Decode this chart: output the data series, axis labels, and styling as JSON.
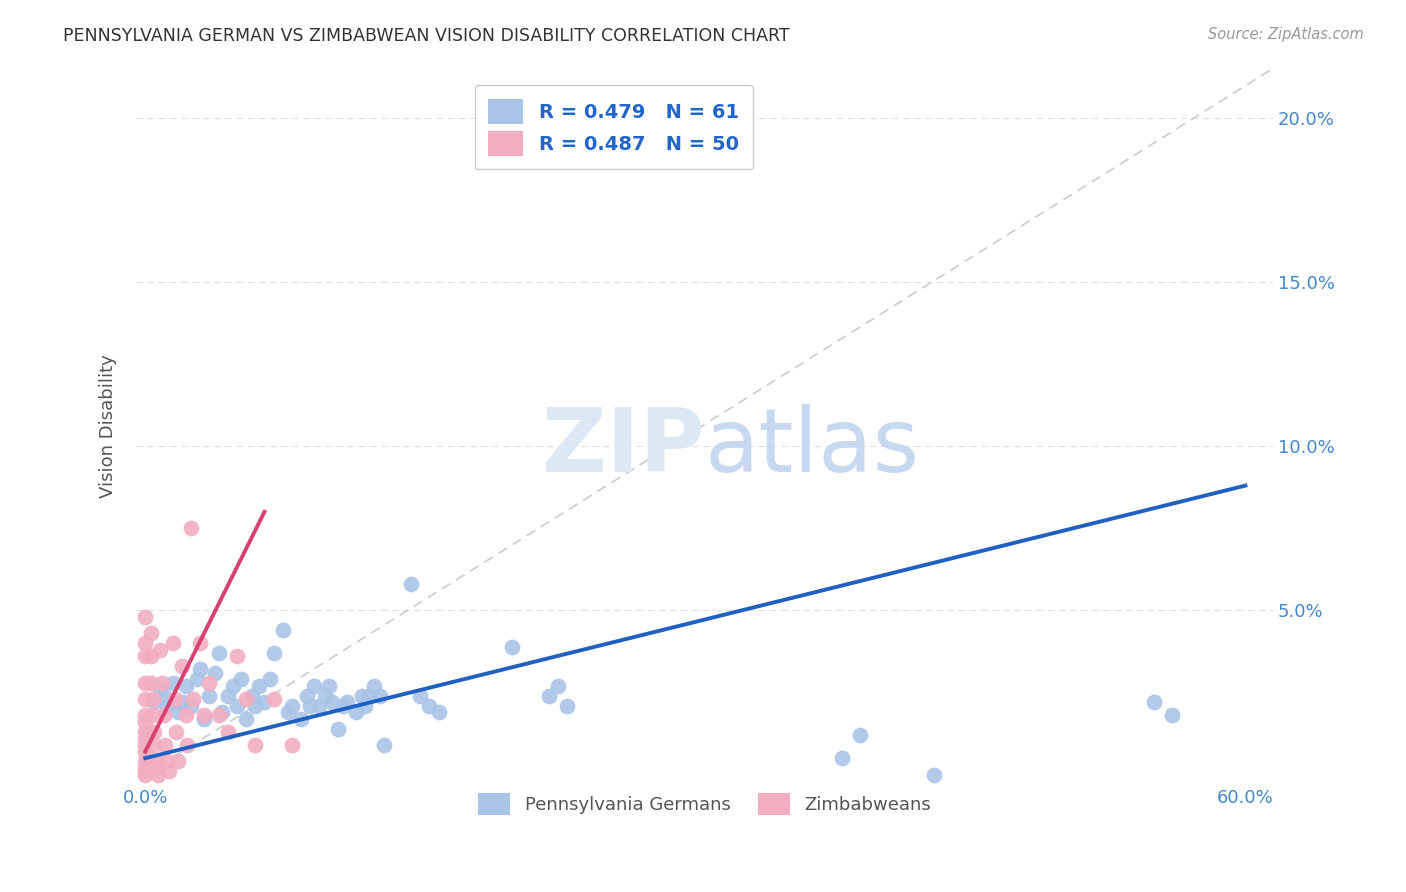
{
  "title": "PENNSYLVANIA GERMAN VS ZIMBABWEAN VISION DISABILITY CORRELATION CHART",
  "source": "Source: ZipAtlas.com",
  "ylabel": "Vision Disability",
  "xlim": [
    -0.005,
    0.615
  ],
  "ylim": [
    -0.003,
    0.215
  ],
  "xtick_vals": [
    0.0,
    0.6
  ],
  "xtick_labels": [
    "0.0%",
    "60.0%"
  ],
  "ytick_vals": [
    0.05,
    0.1,
    0.15,
    0.2
  ],
  "ytick_labels": [
    "5.0%",
    "10.0%",
    "15.0%",
    "20.0%"
  ],
  "blue_R": 0.479,
  "blue_N": 61,
  "pink_R": 0.487,
  "pink_N": 50,
  "blue_color": "#aac4e8",
  "pink_color": "#f2aec0",
  "blue_line_color": "#2060c0",
  "pink_line_color": "#d84070",
  "diag_line_color": "#cccccc",
  "background_color": "#ffffff",
  "legend_text_color": "#2266cc",
  "title_color": "#333333",
  "axis_tick_color": "#4488cc",
  "grid_color": "#e0e0e0",
  "watermark_color": "#dde8f5",
  "blue_line_x": [
    0.0,
    0.6
  ],
  "blue_line_y": [
    0.005,
    0.088
  ],
  "pink_line_x": [
    0.0,
    0.065
  ],
  "pink_line_y": [
    0.007,
    0.08
  ],
  "blue_points": [
    [
      0.005,
      0.022
    ],
    [
      0.008,
      0.026
    ],
    [
      0.01,
      0.024
    ],
    [
      0.012,
      0.021
    ],
    [
      0.015,
      0.028
    ],
    [
      0.018,
      0.019
    ],
    [
      0.02,
      0.022
    ],
    [
      0.022,
      0.027
    ],
    [
      0.025,
      0.021
    ],
    [
      0.028,
      0.029
    ],
    [
      0.03,
      0.032
    ],
    [
      0.032,
      0.017
    ],
    [
      0.035,
      0.024
    ],
    [
      0.038,
      0.031
    ],
    [
      0.04,
      0.037
    ],
    [
      0.042,
      0.019
    ],
    [
      0.045,
      0.024
    ],
    [
      0.048,
      0.027
    ],
    [
      0.05,
      0.021
    ],
    [
      0.052,
      0.029
    ],
    [
      0.055,
      0.017
    ],
    [
      0.058,
      0.024
    ],
    [
      0.06,
      0.021
    ],
    [
      0.062,
      0.027
    ],
    [
      0.065,
      0.022
    ],
    [
      0.068,
      0.029
    ],
    [
      0.07,
      0.037
    ],
    [
      0.075,
      0.044
    ],
    [
      0.078,
      0.019
    ],
    [
      0.08,
      0.021
    ],
    [
      0.085,
      0.017
    ],
    [
      0.088,
      0.024
    ],
    [
      0.09,
      0.021
    ],
    [
      0.092,
      0.027
    ],
    [
      0.095,
      0.021
    ],
    [
      0.098,
      0.024
    ],
    [
      0.1,
      0.027
    ],
    [
      0.102,
      0.022
    ],
    [
      0.105,
      0.014
    ],
    [
      0.108,
      0.021
    ],
    [
      0.11,
      0.022
    ],
    [
      0.115,
      0.019
    ],
    [
      0.118,
      0.024
    ],
    [
      0.12,
      0.021
    ],
    [
      0.122,
      0.024
    ],
    [
      0.125,
      0.027
    ],
    [
      0.128,
      0.024
    ],
    [
      0.13,
      0.009
    ],
    [
      0.145,
      0.058
    ],
    [
      0.15,
      0.024
    ],
    [
      0.155,
      0.021
    ],
    [
      0.16,
      0.019
    ],
    [
      0.2,
      0.039
    ],
    [
      0.22,
      0.024
    ],
    [
      0.225,
      0.027
    ],
    [
      0.23,
      0.021
    ],
    [
      0.38,
      0.005
    ],
    [
      0.39,
      0.012
    ],
    [
      0.43,
      0.0
    ],
    [
      0.55,
      0.022
    ],
    [
      0.56,
      0.018
    ]
  ],
  "pink_points": [
    [
      0.0,
      0.048
    ],
    [
      0.0,
      0.04
    ],
    [
      0.0,
      0.036
    ],
    [
      0.0,
      0.028
    ],
    [
      0.0,
      0.023
    ],
    [
      0.0,
      0.018
    ],
    [
      0.0,
      0.016
    ],
    [
      0.0,
      0.013
    ],
    [
      0.0,
      0.011
    ],
    [
      0.0,
      0.009
    ],
    [
      0.0,
      0.007
    ],
    [
      0.0,
      0.004
    ],
    [
      0.0,
      0.002
    ],
    [
      0.0,
      0.001
    ],
    [
      0.0,
      0.0
    ],
    [
      0.003,
      0.043
    ],
    [
      0.003,
      0.036
    ],
    [
      0.003,
      0.028
    ],
    [
      0.004,
      0.023
    ],
    [
      0.004,
      0.018
    ],
    [
      0.005,
      0.013
    ],
    [
      0.005,
      0.009
    ],
    [
      0.006,
      0.004
    ],
    [
      0.006,
      0.002
    ],
    [
      0.007,
      0.0
    ],
    [
      0.008,
      0.038
    ],
    [
      0.009,
      0.028
    ],
    [
      0.01,
      0.018
    ],
    [
      0.011,
      0.009
    ],
    [
      0.012,
      0.004
    ],
    [
      0.013,
      0.001
    ],
    [
      0.015,
      0.04
    ],
    [
      0.016,
      0.023
    ],
    [
      0.017,
      0.013
    ],
    [
      0.018,
      0.004
    ],
    [
      0.02,
      0.033
    ],
    [
      0.022,
      0.018
    ],
    [
      0.023,
      0.009
    ],
    [
      0.025,
      0.075
    ],
    [
      0.026,
      0.023
    ],
    [
      0.03,
      0.04
    ],
    [
      0.032,
      0.018
    ],
    [
      0.035,
      0.028
    ],
    [
      0.04,
      0.018
    ],
    [
      0.045,
      0.013
    ],
    [
      0.05,
      0.036
    ],
    [
      0.055,
      0.023
    ],
    [
      0.06,
      0.009
    ],
    [
      0.07,
      0.023
    ],
    [
      0.08,
      0.009
    ]
  ]
}
